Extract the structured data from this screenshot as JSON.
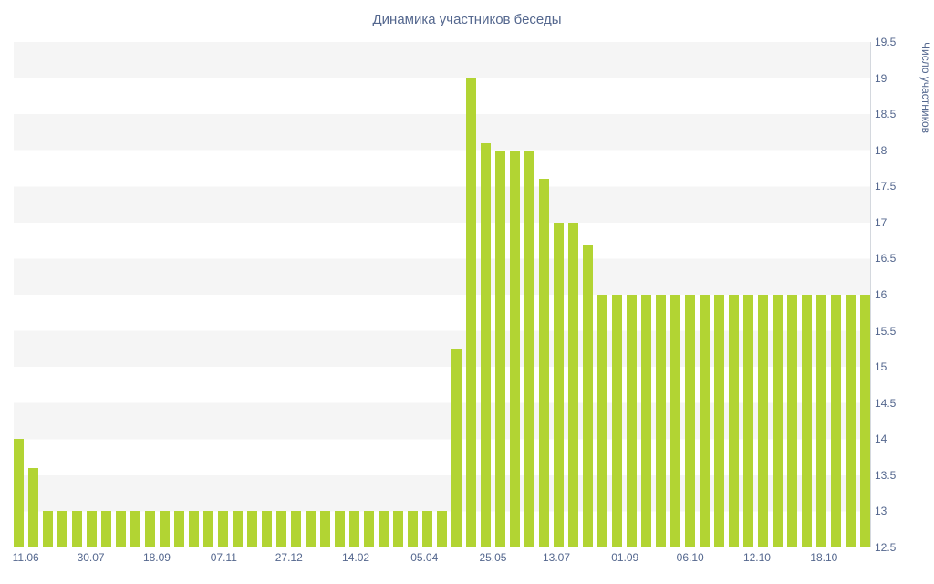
{
  "chart_data": {
    "type": "bar",
    "title": "Динамика участников беседы",
    "xlabel": "",
    "ylabel": "Число участников",
    "ylim": [
      12.5,
      19.5
    ],
    "y_tick_step": 0.5,
    "grid": "horizontal-striped-bands",
    "legend": "none",
    "bar_color": "#b2d433",
    "stripe_color": "#f5f5f5",
    "text_color": "#54678e",
    "y_ticks": [
      "19.5",
      "19",
      "18.5",
      "18",
      "17.5",
      "17",
      "16.5",
      "16",
      "15.5",
      "15",
      "14.5",
      "14",
      "13.5",
      "13",
      "12.5"
    ],
    "x_ticks": [
      {
        "label": "11.06",
        "pos": 1.4
      },
      {
        "label": "30.07",
        "pos": 9.0
      },
      {
        "label": "18.09",
        "pos": 16.7
      },
      {
        "label": "07.11",
        "pos": 24.5
      },
      {
        "label": "27.12",
        "pos": 32.1
      },
      {
        "label": "14.02",
        "pos": 39.9
      },
      {
        "label": "05.04",
        "pos": 47.9
      },
      {
        "label": "25.05",
        "pos": 55.9
      },
      {
        "label": "13.07",
        "pos": 63.3
      },
      {
        "label": "01.09",
        "pos": 71.3
      },
      {
        "label": "06.10",
        "pos": 78.9
      },
      {
        "label": "12.10",
        "pos": 86.7
      },
      {
        "label": "18.10",
        "pos": 94.5
      }
    ],
    "values": [
      14,
      13.6,
      13,
      13,
      13,
      13,
      13,
      13,
      13,
      13,
      13,
      13,
      13,
      13,
      13,
      13,
      13,
      13,
      13,
      13,
      13,
      13,
      13,
      13,
      13,
      13,
      13,
      13,
      13,
      13,
      15.25,
      19,
      18.1,
      18,
      18,
      18,
      17.6,
      17,
      17,
      16.7,
      16,
      16,
      16,
      16,
      16,
      16,
      16,
      16,
      16,
      16,
      16,
      16,
      16,
      16,
      16,
      16,
      16,
      16,
      16
    ]
  }
}
